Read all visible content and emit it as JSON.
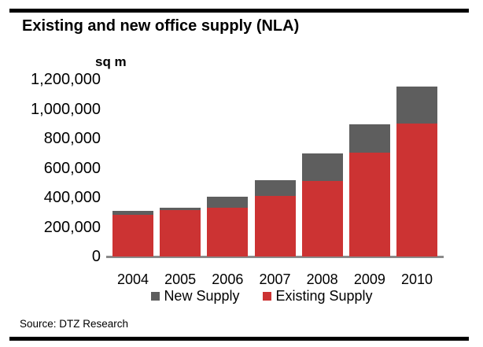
{
  "page": {
    "title": "Existing and new office supply (NLA)",
    "source": "Source: DTZ Research"
  },
  "chart_data": {
    "type": "bar",
    "stacked": true,
    "title": "Existing and new office supply (NLA)",
    "unit_label": "sq m",
    "xlabel": "",
    "ylabel": "sq m",
    "categories": [
      "2004",
      "2005",
      "2006",
      "2007",
      "2008",
      "2009",
      "2010"
    ],
    "series": [
      {
        "name": "Existing Supply",
        "color": "#CC3333",
        "values": [
          285000,
          315000,
          330000,
          410000,
          510000,
          705000,
          900000
        ]
      },
      {
        "name": "New Supply",
        "color": "#5E5E5E",
        "values": [
          25000,
          15000,
          75000,
          105000,
          190000,
          190000,
          250000
        ]
      }
    ],
    "totals": [
      310000,
      330000,
      405000,
      515000,
      700000,
      895000,
      1150000
    ],
    "ylim": [
      0,
      1200000
    ],
    "ytick_step": 200000,
    "ytick_labels": [
      "0",
      "200,000",
      "400,000",
      "600,000",
      "800,000",
      "1,000,000",
      "1,200,000"
    ],
    "grid": false,
    "axis_line_color": "#8A8A8A",
    "legend_position": "bottom",
    "legend": [
      {
        "label": "New Supply",
        "color": "#5E5E5E"
      },
      {
        "label": "Existing Supply",
        "color": "#CC3333"
      }
    ]
  }
}
